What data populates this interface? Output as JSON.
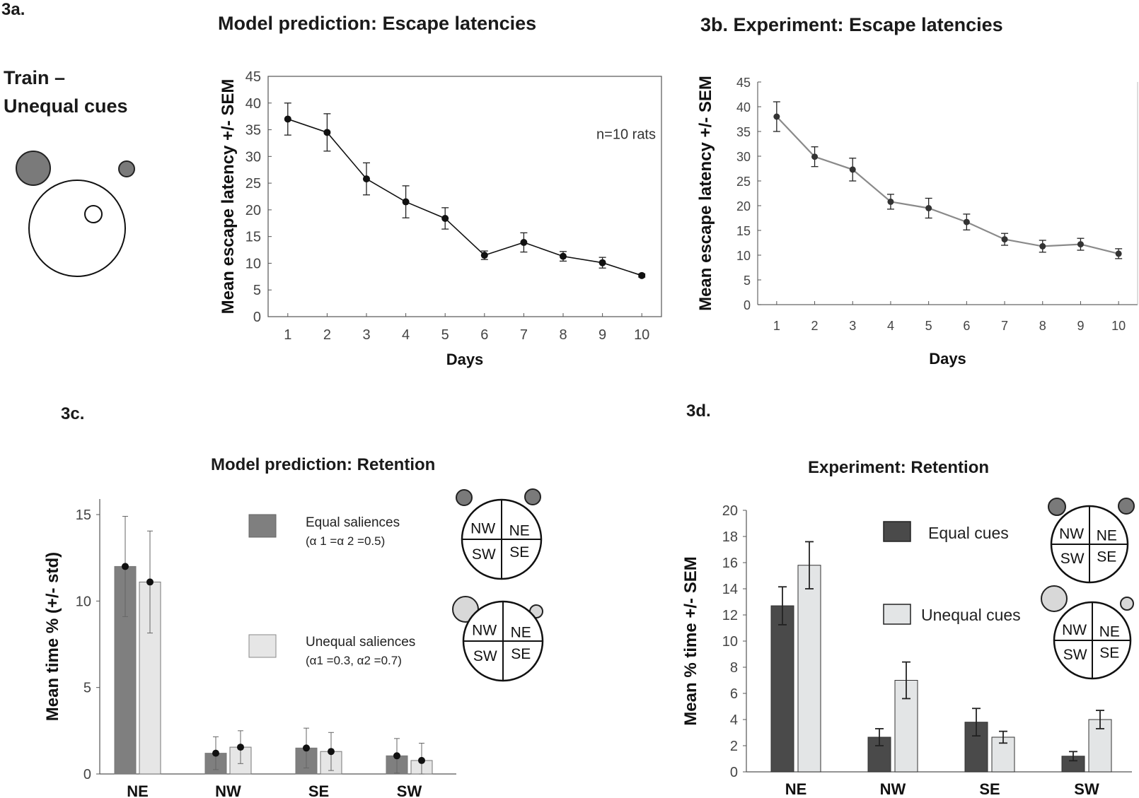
{
  "panels": {
    "a_label": "3a.",
    "c_label": "3c.",
    "d_label": "3d."
  },
  "train": {
    "line1": "Train –",
    "line2": "Unequal cues"
  },
  "chart_data": [
    {
      "id": "3a",
      "type": "line",
      "title": "Model prediction: Escape latencies",
      "xlabel": "Days",
      "ylabel": "Mean escape latency +/- SEM",
      "annotation": "n=10 rats",
      "x": [
        1,
        2,
        3,
        4,
        5,
        6,
        7,
        8,
        9,
        10
      ],
      "y": [
        37,
        34.5,
        25.8,
        21.5,
        18.4,
        11.5,
        13.9,
        11.3,
        10.1,
        7.7
      ],
      "err": [
        3,
        3.5,
        3,
        3,
        2,
        0.8,
        1.8,
        0.9,
        1,
        0.3
      ],
      "xticks": [
        "1",
        "2",
        "3",
        "4",
        "5",
        "6",
        "7",
        "8",
        "9",
        "10"
      ],
      "yticks": [
        "0",
        "5",
        "10",
        "15",
        "20",
        "25",
        "30",
        "35",
        "40",
        "45"
      ],
      "ylim": [
        0,
        45
      ],
      "xlim": [
        0.5,
        10.5
      ],
      "colors": {
        "line": "#111111",
        "marker": "#111111"
      }
    },
    {
      "id": "3b",
      "type": "line",
      "title": "3b. Experiment: Escape latencies",
      "xlabel": "Days",
      "ylabel": "Mean escape latency +/- SEM",
      "x": [
        1,
        2,
        3,
        4,
        5,
        6,
        7,
        8,
        9,
        10
      ],
      "y": [
        38,
        29.9,
        27.3,
        20.8,
        19.5,
        16.7,
        13.2,
        11.8,
        12.2,
        10.3
      ],
      "err": [
        3,
        2,
        2.3,
        1.5,
        2,
        1.6,
        1.2,
        1.2,
        1.2,
        1
      ],
      "xticks": [
        "1",
        "2",
        "3",
        "4",
        "5",
        "6",
        "7",
        "8",
        "9",
        "10"
      ],
      "yticks": [
        "0",
        "5",
        "10",
        "15",
        "20",
        "25",
        "30",
        "35",
        "40",
        "45"
      ],
      "ylim": [
        0,
        45
      ],
      "xlim": [
        0.5,
        10.5
      ],
      "colors": {
        "line": "#8a8a8a",
        "marker": "#333333"
      }
    },
    {
      "id": "3c",
      "type": "bar",
      "title": "Model prediction: Retention",
      "xlabel": "",
      "ylabel": "Mean time % (+/- std)",
      "categories": [
        "NE",
        "NW",
        "SE",
        "SW"
      ],
      "series": [
        {
          "name": "Equal saliences",
          "sub": "(α 1 =α 2 =0.5)",
          "values": [
            12,
            1.2,
            1.5,
            1.05
          ],
          "err": [
            2.9,
            0.95,
            1.15,
            1.0
          ],
          "color": "#7f7f7f"
        },
        {
          "name": "Unequal saliences",
          "sub": "(α1 =0.3,  α2 =0.7)",
          "values": [
            11.1,
            1.55,
            1.3,
            0.78
          ],
          "err": [
            2.95,
            0.95,
            1.1,
            1.0
          ],
          "color": "#e6e6e6"
        }
      ],
      "yticks": [
        "0",
        "5",
        "10",
        "15"
      ],
      "ylim": [
        0,
        15.9
      ]
    },
    {
      "id": "3d",
      "type": "bar",
      "title": "Experiment: Retention",
      "xlabel": "",
      "ylabel": "Mean % time +/- SEM",
      "categories": [
        "NE",
        "NW",
        "SE",
        "SW"
      ],
      "series": [
        {
          "name": "Equal cues",
          "values": [
            12.7,
            2.65,
            3.8,
            1.2
          ],
          "err": [
            1.45,
            0.65,
            1.05,
            0.35
          ],
          "color": "#4a4a4a"
        },
        {
          "name": "Unequal cues",
          "values": [
            15.8,
            7,
            2.65,
            4
          ],
          "err": [
            1.8,
            1.4,
            0.45,
            0.7
          ],
          "color": "#e3e5e6"
        }
      ],
      "yticks": [
        "0",
        "2",
        "4",
        "6",
        "8",
        "10",
        "12",
        "14",
        "16",
        "18",
        "20"
      ],
      "ylim": [
        0,
        20
      ]
    }
  ],
  "quadrants": {
    "nw": "NW",
    "ne": "NE",
    "sw": "SW",
    "se": "SE"
  },
  "colors": {
    "cue_dark": "#7a7a7a",
    "cue_light": "#d8d8d8"
  }
}
